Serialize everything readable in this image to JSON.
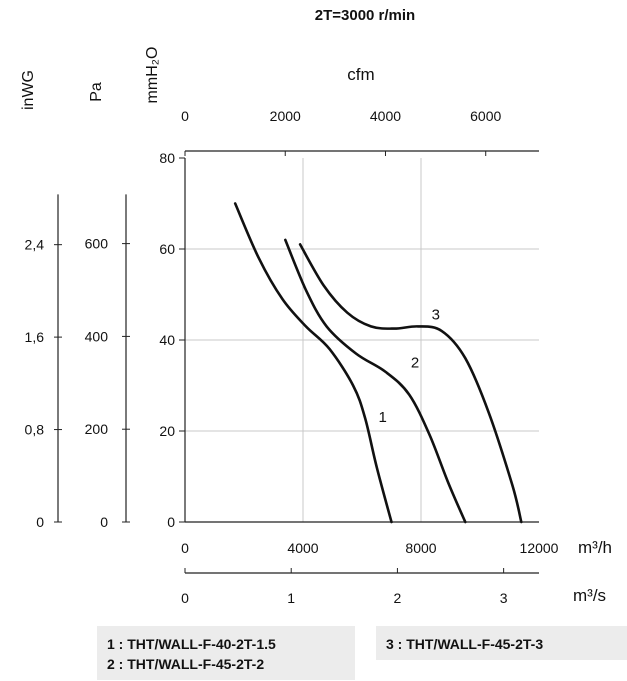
{
  "chart_data": {
    "type": "line",
    "title": "2T=3000 r/min",
    "axes": {
      "mmH2O": {
        "label": "mmH₂O",
        "ylim": [
          0,
          80
        ],
        "ticks": [
          "0",
          "20",
          "40",
          "60",
          "80"
        ]
      },
      "Pa": {
        "label": "Pa",
        "ylim": [
          0,
          784.5
        ],
        "ticks": [
          "0",
          "200",
          "400",
          "600"
        ]
      },
      "inWG": {
        "label": "inWG",
        "ylim": [
          0,
          3.15
        ],
        "ticks": [
          "0",
          "0,8",
          "1,6",
          "2,4"
        ]
      },
      "cfm": {
        "label": "cfm",
        "xlim": [
          0,
          7063
        ],
        "ticks": [
          "0",
          "2000",
          "4000",
          "6000"
        ]
      },
      "m3h": {
        "label": "m³/h",
        "xlim": [
          0,
          12000
        ],
        "ticks": [
          "0",
          "4000",
          "8000",
          "12000"
        ]
      },
      "m3s": {
        "label": "m³/s",
        "xlim": [
          0,
          3.333
        ],
        "ticks": [
          "0",
          "1",
          "2",
          "3"
        ]
      }
    },
    "xlabel": "m³/h",
    "ylabel": "mmH₂O",
    "grid": true,
    "series": [
      {
        "name": "1",
        "x": [
          1700,
          2500,
          3300,
          4100,
          4900,
          5700,
          6100,
          6500,
          7000
        ],
        "y": [
          70,
          58,
          49,
          43,
          38,
          30,
          23,
          12,
          0
        ]
      },
      {
        "name": "2",
        "x": [
          3400,
          4100,
          4800,
          5800,
          6800,
          7600,
          8300,
          8900,
          9500
        ],
        "y": [
          62,
          51,
          43,
          37,
          33,
          28,
          19,
          9,
          0
        ]
      },
      {
        "name": "3",
        "x": [
          3900,
          4700,
          5500,
          6300,
          7100,
          7900,
          8700,
          9500,
          10300,
          11100,
          11400
        ],
        "y": [
          61,
          52,
          46,
          43,
          42.5,
          43,
          42,
          36,
          24,
          8,
          0
        ]
      }
    ]
  },
  "legend": {
    "left": [
      "1 : THT/WALL-F-40-2T-1.5",
      "2 : THT/WALL-F-45-2T-2"
    ],
    "right": [
      "3 : THT/WALL-F-45-2T-3"
    ]
  }
}
